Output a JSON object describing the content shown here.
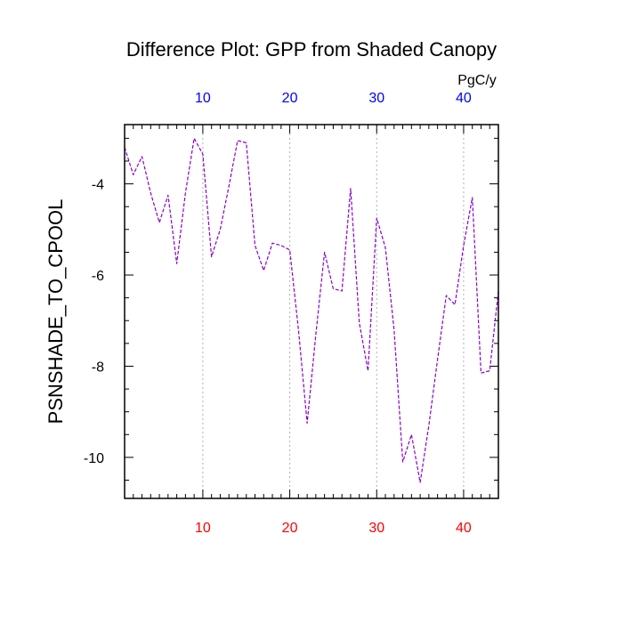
{
  "chart_data": {
    "type": "line",
    "title": "Difference Plot: GPP from Shaded Canopy",
    "ylabel": "PSNSHADE_TO_CPOOL",
    "units_label": "PgC/y",
    "xlim": [
      1,
      44
    ],
    "ylim": [
      -10.9,
      -2.7
    ],
    "x_major_ticks": [
      10,
      20,
      30,
      40
    ],
    "x_tick_labels": [
      "10",
      "20",
      "30",
      "40"
    ],
    "y_major_ticks": [
      -10,
      -8,
      -6,
      -4
    ],
    "y_tick_labels": [
      "-10",
      "-8",
      "-6",
      "-4"
    ],
    "grid": "vertical dotted at x major ticks",
    "bottom_tick_color": "#ff0000",
    "top_tick_color": "#0000ff",
    "line_color": "#8a00c8",
    "line_style": "dashed",
    "x": [
      1,
      2,
      3,
      4,
      5,
      6,
      7,
      8,
      9,
      10,
      11,
      12,
      13,
      14,
      15,
      16,
      17,
      18,
      19,
      20,
      21,
      22,
      23,
      24,
      25,
      26,
      27,
      28,
      29,
      30,
      31,
      32,
      33,
      34,
      35,
      36,
      37,
      38,
      39,
      40,
      41,
      42,
      43,
      44
    ],
    "values": [
      -3.2,
      -3.8,
      -3.4,
      -4.2,
      -4.85,
      -4.25,
      -5.75,
      -4.2,
      -3.0,
      -3.35,
      -5.6,
      -5.0,
      -4.05,
      -3.05,
      -3.1,
      -5.35,
      -5.9,
      -5.3,
      -5.35,
      -5.45,
      -7.2,
      -9.25,
      -7.3,
      -5.5,
      -6.3,
      -6.35,
      -4.1,
      -7.05,
      -8.1,
      -4.75,
      -5.4,
      -7.2,
      -10.1,
      -9.5,
      -10.55,
      -9.3,
      -7.85,
      -6.45,
      -6.65,
      -5.35,
      -4.3,
      -8.15,
      -8.1,
      -6.35
    ]
  }
}
